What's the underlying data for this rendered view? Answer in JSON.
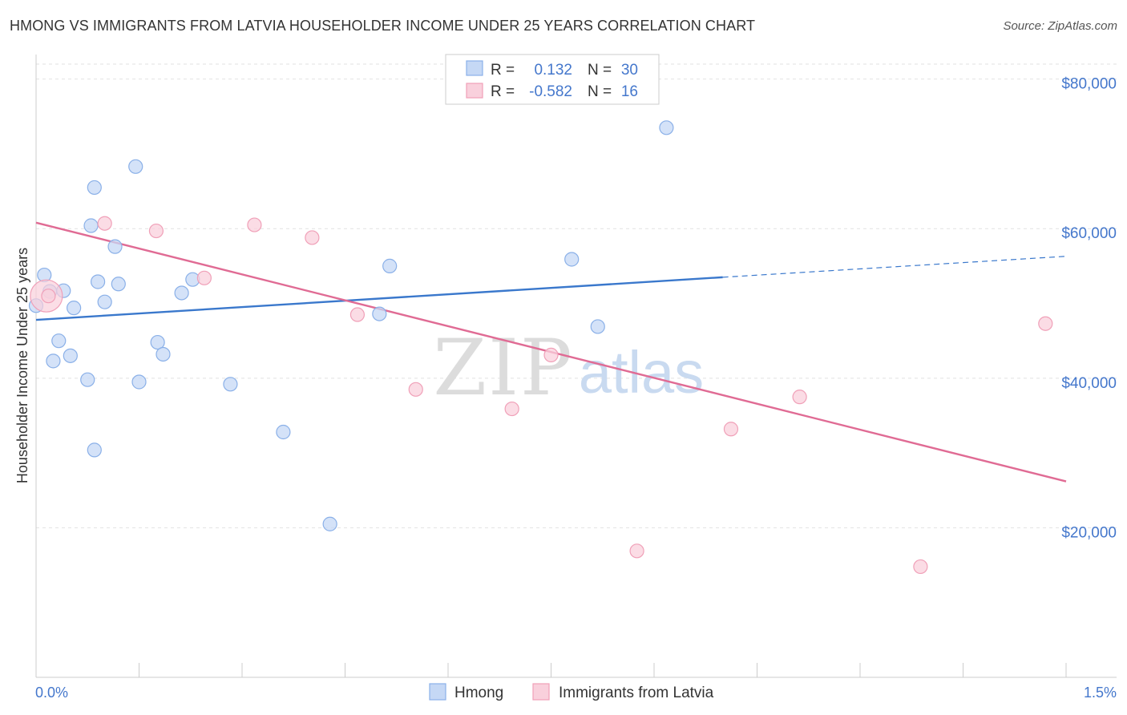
{
  "title": "HMONG VS IMMIGRANTS FROM LATVIA HOUSEHOLDER INCOME UNDER 25 YEARS CORRELATION CHART",
  "source": "Source: ZipAtlas.com",
  "watermark": {
    "zip": "ZIP",
    "atlas": "atlas"
  },
  "chart_data": {
    "type": "scatter",
    "title": "HMONG VS IMMIGRANTS FROM LATVIA HOUSEHOLDER INCOME UNDER 25 YEARS CORRELATION CHART",
    "xlabel": "",
    "ylabel": "Householder Income Under 25 years",
    "xlim": [
      0,
      1.5
    ],
    "ylim": [
      0,
      82000
    ],
    "x_tick_labels": {
      "min": "0.0%",
      "max": "1.5%"
    },
    "y_ticks": [
      {
        "value": 20000,
        "label": "$20,000"
      },
      {
        "value": 40000,
        "label": "$40,000"
      },
      {
        "value": 60000,
        "label": "$60,000"
      },
      {
        "value": 80000,
        "label": "$80,000"
      }
    ],
    "x_minor_ticks": [
      0.15,
      0.3,
      0.45,
      0.6,
      0.75,
      0.9,
      1.05,
      1.2,
      1.35,
      1.5
    ],
    "legend_stats": [
      {
        "r_label": "R =",
        "r_value": "0.132",
        "n_label": "N =",
        "n_value": "30"
      },
      {
        "r_label": "R =",
        "r_value": "-0.582",
        "n_label": "N =",
        "n_value": "16"
      }
    ],
    "series": [
      {
        "name": "Hmong",
        "color": "#8ab0e8",
        "fill": "#c5d8f5",
        "line_color": "#3a78cc",
        "trend": {
          "x0": 0.0,
          "y0": 47800,
          "x1": 1.0,
          "y1": 53500,
          "dash_to_x": 1.5,
          "dash_to_y": 56300
        },
        "points": [
          [
            0.0,
            49700
          ],
          [
            0.012,
            53800
          ],
          [
            0.02,
            51600
          ],
          [
            0.025,
            42300
          ],
          [
            0.033,
            45000
          ],
          [
            0.04,
            51700
          ],
          [
            0.05,
            43000
          ],
          [
            0.055,
            49400
          ],
          [
            0.075,
            39800
          ],
          [
            0.08,
            60400
          ],
          [
            0.085,
            30400
          ],
          [
            0.09,
            52900
          ],
          [
            0.085,
            65500
          ],
          [
            0.115,
            57600
          ],
          [
            0.12,
            52600
          ],
          [
            0.1,
            50200
          ],
          [
            0.145,
            68300
          ],
          [
            0.15,
            39500
          ],
          [
            0.177,
            44800
          ],
          [
            0.185,
            43200
          ],
          [
            0.212,
            51400
          ],
          [
            0.228,
            53200
          ],
          [
            0.283,
            39200
          ],
          [
            0.36,
            32800
          ],
          [
            0.428,
            20500
          ],
          [
            0.5,
            48600
          ],
          [
            0.515,
            55000
          ],
          [
            0.78,
            55900
          ],
          [
            0.818,
            46900
          ],
          [
            0.918,
            73500
          ]
        ]
      },
      {
        "name": "Immigrants from Latvia",
        "color": "#f0a0b8",
        "fill": "#f9d0dc",
        "line_color": "#e06b94",
        "trend": {
          "x0": 0.0,
          "y0": 60800,
          "x1": 1.5,
          "y1": 26200
        },
        "points": [
          [
            0.018,
            51000
          ],
          [
            0.1,
            60700
          ],
          [
            0.175,
            59700
          ],
          [
            0.245,
            53400
          ],
          [
            0.318,
            60500
          ],
          [
            0.402,
            58800
          ],
          [
            0.468,
            48500
          ],
          [
            0.553,
            38500
          ],
          [
            0.693,
            35900
          ],
          [
            0.75,
            43100
          ],
          [
            0.875,
            16900
          ],
          [
            1.012,
            33200
          ],
          [
            1.112,
            37500
          ],
          [
            1.288,
            14800
          ],
          [
            1.47,
            47300
          ]
        ],
        "large_point": [
          0.015,
          51000
        ]
      }
    ]
  }
}
